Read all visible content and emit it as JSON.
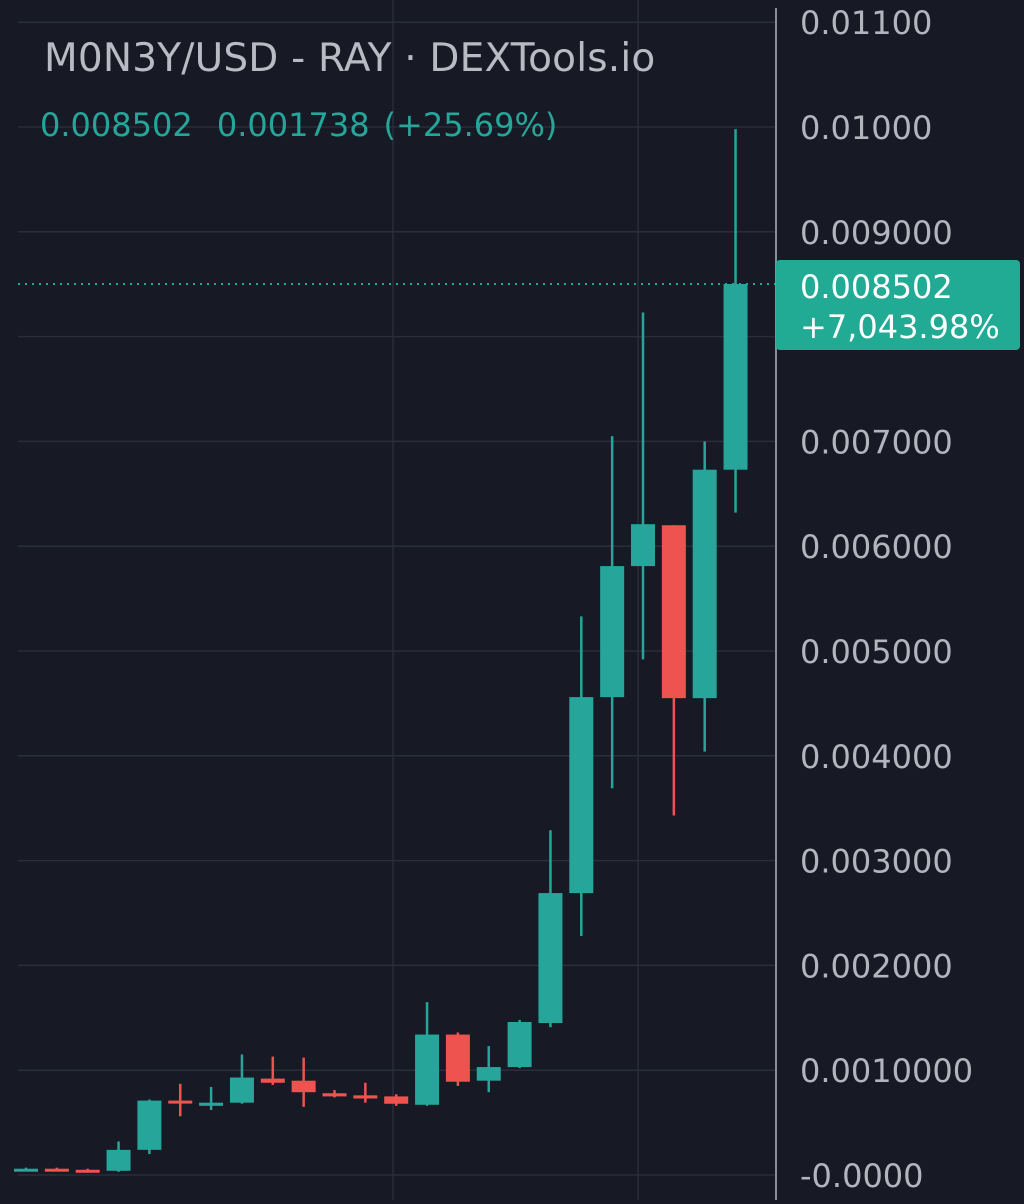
{
  "header": {
    "title": "M0N3Y/USD - RAY · DEXTools.io",
    "last_price": "0.008502",
    "change": "0.001738",
    "change_pct": "(+25.69%)"
  },
  "price_tag": {
    "price": "0.008502",
    "change": "+7,043.98%"
  },
  "colors": {
    "background": "#171925",
    "grid": "#2a2d3a",
    "up": "#26a69a",
    "down": "#ef5350",
    "axis_text": "#b2b5be",
    "tag_bg": "#22ab94",
    "tag_text": "#ffffff"
  },
  "chart_data": {
    "type": "candlestick",
    "title": "M0N3Y/USD - RAY · DEXTools.io",
    "ylim": [
      0,
      0.011
    ],
    "y_ticks": [
      {
        "value": 0.011,
        "label": "0.01100"
      },
      {
        "value": 0.01,
        "label": "0.01000"
      },
      {
        "value": 0.009,
        "label": "0.009000"
      },
      {
        "value": 0.007,
        "label": "0.007000"
      },
      {
        "value": 0.006,
        "label": "0.006000"
      },
      {
        "value": 0.005,
        "label": "0.005000"
      },
      {
        "value": 0.004,
        "label": "0.004000"
      },
      {
        "value": 0.003,
        "label": "0.003000"
      },
      {
        "value": 0.002,
        "label": "0.002000"
      },
      {
        "value": 0.001,
        "label": "0.0010000"
      },
      {
        "value": 0.0,
        "label": "-0.0000"
      }
    ],
    "last_price": 0.008502,
    "grid": true,
    "candles": [
      {
        "o": 6e-05,
        "h": 7e-05,
        "l": 5e-05,
        "c": 6e-05
      },
      {
        "o": 6e-05,
        "h": 7e-05,
        "l": 5e-05,
        "c": 5e-05
      },
      {
        "o": 5e-05,
        "h": 6e-05,
        "l": 4e-05,
        "c": 4e-05
      },
      {
        "o": 4e-05,
        "h": 0.00032,
        "l": 3e-05,
        "c": 0.00024
      },
      {
        "o": 0.00024,
        "h": 0.00072,
        "l": 0.0002,
        "c": 0.00071
      },
      {
        "o": 0.00071,
        "h": 0.00087,
        "l": 0.00056,
        "c": 0.00069
      },
      {
        "o": 0.00066,
        "h": 0.00084,
        "l": 0.00062,
        "c": 0.00069
      },
      {
        "o": 0.00069,
        "h": 0.00115,
        "l": 0.00068,
        "c": 0.00093
      },
      {
        "o": 0.00092,
        "h": 0.00113,
        "l": 0.00086,
        "c": 0.00088
      },
      {
        "o": 0.0009,
        "h": 0.00112,
        "l": 0.00065,
        "c": 0.00079
      },
      {
        "o": 0.00078,
        "h": 0.00081,
        "l": 0.00074,
        "c": 0.00075
      },
      {
        "o": 0.00076,
        "h": 0.00088,
        "l": 0.00069,
        "c": 0.00073
      },
      {
        "o": 0.00075,
        "h": 0.00077,
        "l": 0.00066,
        "c": 0.00068
      },
      {
        "o": 0.00067,
        "h": 0.00165,
        "l": 0.00066,
        "c": 0.00134
      },
      {
        "o": 0.00134,
        "h": 0.00136,
        "l": 0.00085,
        "c": 0.00089
      },
      {
        "o": 0.0009,
        "h": 0.00123,
        "l": 0.00079,
        "c": 0.00103
      },
      {
        "o": 0.00103,
        "h": 0.00148,
        "l": 0.00102,
        "c": 0.00146
      },
      {
        "o": 0.00145,
        "h": 0.00329,
        "l": 0.00141,
        "c": 0.00269
      },
      {
        "o": 0.00269,
        "h": 0.00533,
        "l": 0.00228,
        "c": 0.00456
      },
      {
        "o": 0.00456,
        "h": 0.00705,
        "l": 0.00369,
        "c": 0.00581
      },
      {
        "o": 0.00581,
        "h": 0.00823,
        "l": 0.00492,
        "c": 0.00621
      },
      {
        "o": 0.0062,
        "h": 0.0062,
        "l": 0.00343,
        "c": 0.00455
      },
      {
        "o": 0.00455,
        "h": 0.007,
        "l": 0.00404,
        "c": 0.00673
      },
      {
        "o": 0.00673,
        "h": 0.00998,
        "l": 0.00632,
        "c": 0.008502
      }
    ]
  }
}
